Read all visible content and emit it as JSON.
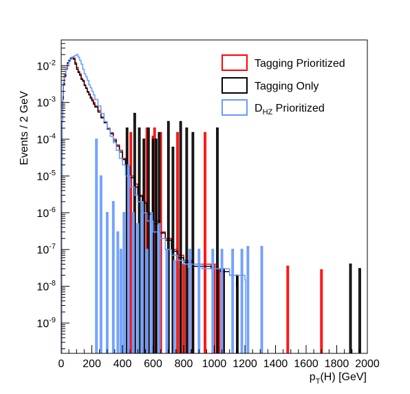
{
  "chart_data": {
    "type": "line",
    "style": "step-histogram",
    "xlabel": {
      "main": "p",
      "sub": "T",
      "rest": "(H) [GeV]"
    },
    "ylabel": "Events / 2 GeV",
    "xlim": [
      0,
      2000
    ],
    "ylim": [
      1.5e-10,
      0.05
    ],
    "yscale": "log",
    "grid": false,
    "legend_position": "top-right",
    "x_ticks": [
      {
        "value": 0,
        "label": "0"
      },
      {
        "value": 200,
        "label": "200"
      },
      {
        "value": 400,
        "label": "400"
      },
      {
        "value": 600,
        "label": "600"
      },
      {
        "value": 800,
        "label": "800"
      },
      {
        "value": 1000,
        "label": "1000"
      },
      {
        "value": 1200,
        "label": "1200"
      },
      {
        "value": 1400,
        "label": "1400"
      },
      {
        "value": 1600,
        "label": "1600"
      },
      {
        "value": 1800,
        "label": "1800"
      },
      {
        "value": 2000,
        "label": "2000"
      }
    ],
    "y_ticks": [
      {
        "value": 1e-09,
        "base": "10",
        "exp": "-9"
      },
      {
        "value": 1e-08,
        "base": "10",
        "exp": "-8"
      },
      {
        "value": 1e-07,
        "base": "10",
        "exp": "-7"
      },
      {
        "value": 1e-06,
        "base": "10",
        "exp": "-6"
      },
      {
        "value": 1e-05,
        "base": "10",
        "exp": "-5"
      },
      {
        "value": 0.0001,
        "base": "10",
        "exp": "-4"
      },
      {
        "value": 0.001,
        "base": "10",
        "exp": "-3"
      },
      {
        "value": 0.01,
        "base": "10",
        "exp": "-2"
      }
    ],
    "series": [
      {
        "name": "Tagging Prioritized",
        "legend_label": {
          "main": "Tagging Prioritized",
          "sub": ""
        },
        "color": "#ff0000",
        "bulk": [
          [
            2,
            1e-05
          ],
          [
            6,
            0.0003
          ],
          [
            10,
            0.0012
          ],
          [
            14,
            0.003
          ],
          [
            20,
            0.005
          ],
          [
            30,
            0.008
          ],
          [
            40,
            0.011
          ],
          [
            50,
            0.013
          ],
          [
            60,
            0.015
          ],
          [
            70,
            0.016
          ],
          [
            80,
            0.016
          ],
          [
            90,
            0.012
          ],
          [
            100,
            0.009
          ],
          [
            110,
            0.007
          ],
          [
            120,
            0.006
          ],
          [
            130,
            0.0045
          ],
          [
            140,
            0.004
          ],
          [
            150,
            0.003
          ],
          [
            160,
            0.0025
          ],
          [
            170,
            0.002
          ],
          [
            180,
            0.0017
          ],
          [
            190,
            0.0014
          ],
          [
            200,
            0.0012
          ],
          [
            210,
            0.001
          ],
          [
            220,
            0.0008
          ],
          [
            240,
            0.0006
          ],
          [
            260,
            0.0004
          ],
          [
            280,
            0.0003
          ],
          [
            300,
            0.0002
          ],
          [
            320,
            0.00015
          ],
          [
            340,
            0.0001
          ],
          [
            360,
            7e-05
          ],
          [
            380,
            5e-05
          ],
          [
            400,
            3e-05
          ],
          [
            420,
            2e-05
          ],
          [
            450,
            1e-05
          ],
          [
            480,
            6e-06
          ],
          [
            500,
            3e-06
          ],
          [
            530,
            2e-06
          ],
          [
            560,
            1e-06
          ],
          [
            600,
            6e-07
          ],
          [
            640,
            3e-07
          ],
          [
            680,
            2e-07
          ],
          [
            720,
            1e-07
          ],
          [
            760,
            7e-08
          ],
          [
            800,
            5e-08
          ],
          [
            860,
            4e-08
          ],
          [
            920,
            4e-08
          ],
          [
            980,
            3e-08
          ],
          [
            1040,
            3e-08
          ]
        ],
        "spikes": [
          [
            455,
            0.00015
          ],
          [
            560,
            0.0002
          ],
          [
            600,
            0.00012
          ],
          [
            610,
            0.0002
          ],
          [
            650,
            0.00015
          ],
          [
            760,
            0.00015
          ],
          [
            780,
            3e-08
          ],
          [
            800,
            4e-08
          ],
          [
            830,
            3e-08
          ],
          [
            860,
            3e-08
          ],
          [
            940,
            0.00015
          ],
          [
            1000,
            4e-08
          ],
          [
            1030,
            3e-08
          ],
          [
            1060,
            3e-08
          ],
          [
            1480,
            3.5e-08
          ],
          [
            1700,
            2.8e-08
          ]
        ]
      },
      {
        "name": "Tagging Only",
        "legend_label": {
          "main": "Tagging Only",
          "sub": ""
        },
        "color": "#000000",
        "bulk": [
          [
            2,
            1e-05
          ],
          [
            6,
            0.0003
          ],
          [
            10,
            0.0013
          ],
          [
            14,
            0.0032
          ],
          [
            20,
            0.0055
          ],
          [
            30,
            0.009
          ],
          [
            40,
            0.012
          ],
          [
            50,
            0.014
          ],
          [
            60,
            0.016
          ],
          [
            70,
            0.017
          ],
          [
            80,
            0.015
          ],
          [
            90,
            0.011
          ],
          [
            100,
            0.008
          ],
          [
            110,
            0.0065
          ],
          [
            120,
            0.0055
          ],
          [
            130,
            0.0042
          ],
          [
            140,
            0.0038
          ],
          [
            150,
            0.0029
          ],
          [
            160,
            0.0024
          ],
          [
            170,
            0.0019
          ],
          [
            180,
            0.0016
          ],
          [
            190,
            0.0013
          ],
          [
            200,
            0.0011
          ],
          [
            210,
            0.0009
          ],
          [
            220,
            0.00075
          ],
          [
            240,
            0.00055
          ],
          [
            260,
            0.00038
          ],
          [
            280,
            0.00028
          ],
          [
            300,
            0.00019
          ],
          [
            320,
            0.00014
          ],
          [
            340,
            9e-05
          ],
          [
            360,
            6.5e-05
          ],
          [
            380,
            4.5e-05
          ],
          [
            400,
            2.8e-05
          ],
          [
            420,
            1.8e-05
          ],
          [
            450,
            9e-06
          ],
          [
            480,
            5e-06
          ],
          [
            500,
            2.8e-06
          ],
          [
            530,
            1.8e-06
          ],
          [
            560,
            9e-07
          ],
          [
            600,
            5e-07
          ],
          [
            640,
            2.8e-07
          ],
          [
            680,
            1.8e-07
          ],
          [
            720,
            9e-08
          ],
          [
            760,
            6e-08
          ],
          [
            800,
            4.5e-08
          ],
          [
            860,
            3.5e-08
          ],
          [
            920,
            3.5e-08
          ],
          [
            980,
            3e-08
          ],
          [
            1040,
            2.5e-08
          ],
          [
            1100,
            2e-08
          ],
          [
            1150,
            1e-08
          ]
        ],
        "spikes": [
          [
            430,
            0.0002
          ],
          [
            480,
            0.0005
          ],
          [
            510,
            0.0002
          ],
          [
            540,
            0.0001
          ],
          [
            570,
            0.0002
          ],
          [
            600,
            0.0001
          ],
          [
            620,
            0.0001
          ],
          [
            640,
            0.00015
          ],
          [
            700,
            0.0003
          ],
          [
            730,
            6e-05
          ],
          [
            780,
            0.0003
          ],
          [
            820,
            0.0002
          ],
          [
            860,
            0.00015
          ],
          [
            1020,
            0.0002
          ],
          [
            1060,
            3e-08
          ],
          [
            1150,
            2e-08
          ],
          [
            1890,
            4e-08
          ],
          [
            1950,
            3e-08
          ]
        ]
      },
      {
        "name": "D_HZ Prioritized",
        "legend_label": {
          "main": "D",
          "sub": "HZ",
          "rest": " Prioritized"
        },
        "color": "#6699ff",
        "bulk": [
          [
            2,
            1e-05
          ],
          [
            6,
            0.0003
          ],
          [
            10,
            0.0015
          ],
          [
            14,
            0.0035
          ],
          [
            20,
            0.006
          ],
          [
            30,
            0.009
          ],
          [
            40,
            0.011
          ],
          [
            50,
            0.013
          ],
          [
            60,
            0.015
          ],
          [
            70,
            0.017
          ],
          [
            80,
            0.018
          ],
          [
            90,
            0.019
          ],
          [
            100,
            0.02
          ],
          [
            110,
            0.017
          ],
          [
            120,
            0.014
          ],
          [
            130,
            0.011
          ],
          [
            140,
            0.008
          ],
          [
            150,
            0.006
          ],
          [
            160,
            0.005
          ],
          [
            170,
            0.004
          ],
          [
            180,
            0.003
          ],
          [
            190,
            0.0025
          ],
          [
            200,
            0.002
          ],
          [
            210,
            0.0016
          ],
          [
            220,
            0.0012
          ],
          [
            240,
            0.0008
          ],
          [
            260,
            0.0005
          ],
          [
            280,
            0.0003
          ],
          [
            300,
            0.0002
          ],
          [
            320,
            0.00012
          ],
          [
            340,
            8e-05
          ],
          [
            360,
            5e-05
          ],
          [
            380,
            3e-05
          ],
          [
            400,
            2e-05
          ],
          [
            420,
            1e-05
          ],
          [
            450,
            5e-06
          ],
          [
            480,
            3e-06
          ],
          [
            500,
            2e-06
          ],
          [
            530,
            1e-06
          ],
          [
            560,
            6e-07
          ],
          [
            600,
            3e-07
          ],
          [
            640,
            2e-07
          ],
          [
            680,
            1e-07
          ],
          [
            720,
            7e-08
          ],
          [
            760,
            5e-08
          ],
          [
            800,
            4e-08
          ],
          [
            860,
            4e-08
          ],
          [
            920,
            3e-08
          ],
          [
            980,
            3e-08
          ],
          [
            1040,
            3e-08
          ],
          [
            1100,
            2e-08
          ],
          [
            1150,
            2e-08
          ],
          [
            1200,
            1.5e-08
          ]
        ],
        "spikes": [
          [
            230,
            0.0001
          ],
          [
            260,
            1e-05
          ],
          [
            300,
            1e-06
          ],
          [
            340,
            2e-06
          ],
          [
            370,
            3e-07
          ],
          [
            390,
            1e-07
          ],
          [
            410,
            1e-06
          ],
          [
            440,
            2e-05
          ],
          [
            470,
            1e-06
          ],
          [
            500,
            5e-07
          ],
          [
            530,
            2e-06
          ],
          [
            560,
            1e-07
          ],
          [
            590,
            1e-06
          ],
          [
            640,
            5e-07
          ],
          [
            690,
            1e-07
          ],
          [
            740,
            5e-08
          ],
          [
            840,
            1e-07
          ],
          [
            900,
            1e-07
          ],
          [
            990,
            1e-07
          ],
          [
            1050,
            1e-07
          ],
          [
            1120,
            1e-07
          ],
          [
            1180,
            1e-07
          ],
          [
            1220,
            1.2e-07
          ],
          [
            1310,
            1.2e-07
          ]
        ]
      }
    ]
  }
}
